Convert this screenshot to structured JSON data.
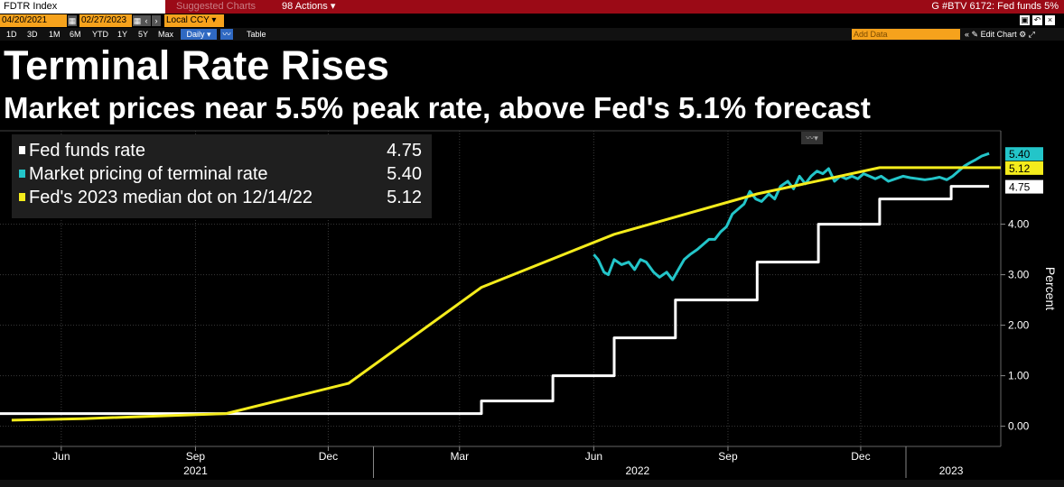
{
  "toolbar": {
    "ticker": "FDTR Index",
    "suggested_charts": "Suggested Charts",
    "actions": "Actions",
    "chart_title": "G #BTV 6172: Fed funds 5%",
    "start_date": "04/20/2021",
    "end_date": "02/27/2023",
    "currency": "Local CCY",
    "periods": [
      "1D",
      "3D",
      "1M",
      "6M",
      "YTD",
      "1Y",
      "5Y",
      "Max"
    ],
    "frequency": "Daily",
    "table": "Table",
    "add_data": "Add Data",
    "edit_chart": "Edit Chart"
  },
  "colors": {
    "fed_funds": "#ffffff",
    "market_pricing": "#23c5c9",
    "median_dot": "#f4ec1c",
    "background": "#000000",
    "topbar": "#9b0a16",
    "orange": "#f6a21c"
  },
  "chart_data": {
    "type": "line",
    "title": "Terminal Rate Rises",
    "subtitle": "Market prices near 5.5% peak rate, above Fed's 5.1% forecast",
    "ylabel": "Percent",
    "ylim": [
      -0.4,
      5.85
    ],
    "yticks": [
      "0.00",
      "1.00",
      "2.00",
      "3.00",
      "4.00"
    ],
    "xlim": [
      "2021-04-20",
      "2023-03-07"
    ],
    "x_month_labels": [
      {
        "date": "2021-06-01",
        "label": "Jun"
      },
      {
        "date": "2021-09-01",
        "label": "Sep"
      },
      {
        "date": "2021-12-01",
        "label": "Dec"
      },
      {
        "date": "2022-03-01",
        "label": "Mar"
      },
      {
        "date": "2022-06-01",
        "label": "Jun"
      },
      {
        "date": "2022-09-01",
        "label": "Sep"
      },
      {
        "date": "2022-12-01",
        "label": "Dec"
      }
    ],
    "x_year_labels": [
      {
        "date": "2021-09-01",
        "label": "2021"
      },
      {
        "date": "2022-07-01",
        "label": "2022"
      },
      {
        "date": "2023-02-01",
        "label": "2023"
      }
    ],
    "x_year_separators": [
      "2022-01-01",
      "2023-01-01"
    ],
    "gridlines": true,
    "legend_position": "top-left",
    "series": [
      {
        "name": "Fed funds rate",
        "key": "fed_funds",
        "last_value": "4.75",
        "axis_label": "4.75",
        "step": true,
        "points": [
          [
            "2021-04-20",
            0.25
          ],
          [
            "2022-03-16",
            0.5
          ],
          [
            "2022-05-04",
            1.0
          ],
          [
            "2022-06-15",
            1.75
          ],
          [
            "2022-07-27",
            2.5
          ],
          [
            "2022-09-21",
            3.25
          ],
          [
            "2022-11-02",
            4.0
          ],
          [
            "2022-12-14",
            4.5
          ],
          [
            "2023-02-01",
            4.75
          ],
          [
            "2023-02-27",
            4.75
          ]
        ]
      },
      {
        "name": "Market pricing of terminal rate",
        "key": "market_pricing",
        "last_value": "5.40",
        "axis_label": "5.40",
        "step": false,
        "points": [
          [
            "2022-06-01",
            3.4
          ],
          [
            "2022-06-04",
            3.3
          ],
          [
            "2022-06-08",
            3.05
          ],
          [
            "2022-06-11",
            3.0
          ],
          [
            "2022-06-15",
            3.3
          ],
          [
            "2022-06-20",
            3.2
          ],
          [
            "2022-06-25",
            3.25
          ],
          [
            "2022-06-29",
            3.1
          ],
          [
            "2022-07-03",
            3.3
          ],
          [
            "2022-07-07",
            3.25
          ],
          [
            "2022-07-12",
            3.05
          ],
          [
            "2022-07-16",
            2.95
          ],
          [
            "2022-07-21",
            3.05
          ],
          [
            "2022-07-25",
            2.9
          ],
          [
            "2022-07-29",
            3.1
          ],
          [
            "2022-08-02",
            3.3
          ],
          [
            "2022-08-06",
            3.4
          ],
          [
            "2022-08-11",
            3.5
          ],
          [
            "2022-08-15",
            3.6
          ],
          [
            "2022-08-19",
            3.7
          ],
          [
            "2022-08-23",
            3.7
          ],
          [
            "2022-08-27",
            3.85
          ],
          [
            "2022-08-31",
            3.95
          ],
          [
            "2022-09-04",
            4.2
          ],
          [
            "2022-09-08",
            4.3
          ],
          [
            "2022-09-12",
            4.4
          ],
          [
            "2022-09-16",
            4.65
          ],
          [
            "2022-09-20",
            4.5
          ],
          [
            "2022-09-24",
            4.45
          ],
          [
            "2022-09-29",
            4.6
          ],
          [
            "2022-10-03",
            4.5
          ],
          [
            "2022-10-07",
            4.75
          ],
          [
            "2022-10-12",
            4.85
          ],
          [
            "2022-10-16",
            4.7
          ],
          [
            "2022-10-20",
            4.95
          ],
          [
            "2022-10-24",
            4.8
          ],
          [
            "2022-10-28",
            4.95
          ],
          [
            "2022-11-01",
            5.05
          ],
          [
            "2022-11-05",
            5.0
          ],
          [
            "2022-11-09",
            5.1
          ],
          [
            "2022-11-13",
            4.85
          ],
          [
            "2022-11-17",
            4.95
          ],
          [
            "2022-11-21",
            4.9
          ],
          [
            "2022-11-25",
            4.95
          ],
          [
            "2022-11-29",
            4.9
          ],
          [
            "2022-12-03",
            5.0
          ],
          [
            "2022-12-07",
            4.95
          ],
          [
            "2022-12-11",
            4.9
          ],
          [
            "2022-12-15",
            4.95
          ],
          [
            "2022-12-20",
            4.85
          ],
          [
            "2022-12-25",
            4.9
          ],
          [
            "2022-12-30",
            4.95
          ],
          [
            "2023-01-04",
            4.92
          ],
          [
            "2023-01-09",
            4.9
          ],
          [
            "2023-01-14",
            4.88
          ],
          [
            "2023-01-19",
            4.9
          ],
          [
            "2023-01-24",
            4.93
          ],
          [
            "2023-01-29",
            4.88
          ],
          [
            "2023-02-02",
            4.95
          ],
          [
            "2023-02-06",
            5.05
          ],
          [
            "2023-02-10",
            5.15
          ],
          [
            "2023-02-14",
            5.22
          ],
          [
            "2023-02-18",
            5.28
          ],
          [
            "2023-02-22",
            5.35
          ],
          [
            "2023-02-27",
            5.4
          ]
        ]
      },
      {
        "name": "Fed's 2023 median dot  on 12/14/22",
        "key": "median_dot",
        "last_value": "5.12",
        "axis_label": "5.12",
        "step": false,
        "points": [
          [
            "2021-04-28",
            0.12
          ],
          [
            "2021-06-16",
            0.15
          ],
          [
            "2021-09-22",
            0.25
          ],
          [
            "2021-12-15",
            0.85
          ],
          [
            "2022-03-16",
            2.75
          ],
          [
            "2022-06-15",
            3.8
          ],
          [
            "2022-09-21",
            4.6
          ],
          [
            "2022-12-14",
            5.12
          ],
          [
            "2023-03-07",
            5.12
          ]
        ]
      }
    ]
  }
}
